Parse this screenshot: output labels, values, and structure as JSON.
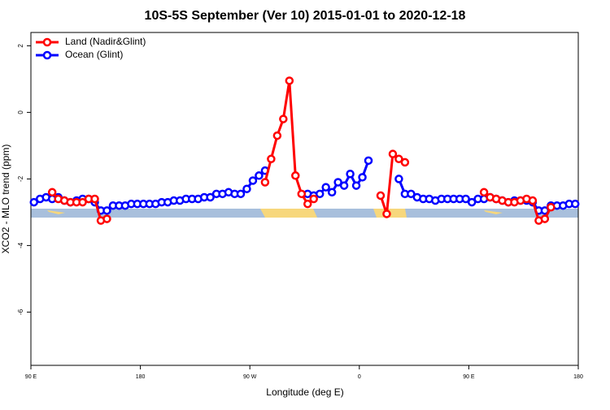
{
  "chart_data": {
    "type": "line",
    "title": "10S-5S September (Ver 10)   2015-01-01 to 2020-12-18",
    "x_label": "Longitude (deg E)",
    "y_label": "XCO2 - MLO trend (ppm)",
    "x": [
      92.5,
      97.5,
      102.5,
      107.5,
      112.5,
      117.5,
      122.5,
      127.5,
      132.5,
      137.5,
      142.5,
      147.5,
      152.5,
      157.5,
      162.5,
      167.5,
      172.5,
      177.5,
      182.5,
      187.5,
      192.5,
      197.5,
      202.5,
      207.5,
      212.5,
      217.5,
      222.5,
      227.5,
      232.5,
      237.5,
      242.5,
      247.5,
      252.5,
      257.5,
      262.5,
      267.5,
      272.5,
      277.5,
      282.5,
      287.5,
      292.5,
      297.5,
      302.5,
      307.5,
      312.5,
      317.5,
      322.5,
      327.5,
      332.5,
      337.5,
      342.5,
      347.5,
      352.5,
      357.5,
      362.5,
      367.5,
      372.5,
      377.5,
      382.5,
      387.5,
      392.5,
      397.5,
      402.5,
      407.5,
      412.5,
      417.5,
      422.5,
      427.5,
      432.5,
      437.5,
      442.5,
      447.5,
      452.5,
      457.5,
      462.5,
      467.5,
      472.5,
      477.5,
      482.5,
      487.5,
      492.5,
      497.5,
      502.5,
      507.5,
      512.5,
      517.5,
      522.5,
      527.5,
      532.5,
      537.5
    ],
    "series": [
      {
        "name": "Land (Nadir&Glint)",
        "color": "#ff0000",
        "values": [
          null,
          null,
          null,
          -2.4,
          -2.6,
          -2.65,
          -2.7,
          -2.7,
          -2.7,
          -2.6,
          -2.6,
          -3.25,
          -3.2,
          null,
          null,
          null,
          null,
          null,
          null,
          null,
          null,
          null,
          null,
          null,
          null,
          null,
          null,
          null,
          null,
          null,
          null,
          null,
          null,
          null,
          null,
          null,
          null,
          null,
          -2.1,
          -1.4,
          -0.7,
          -0.2,
          0.95,
          -1.9,
          -2.45,
          -2.75,
          -2.6,
          null,
          null,
          null,
          null,
          null,
          null,
          null,
          null,
          null,
          null,
          -2.5,
          -3.05,
          -1.25,
          -1.4,
          -1.5,
          null,
          null,
          null,
          null,
          null,
          null,
          null,
          null,
          null,
          null,
          null,
          null,
          -2.4,
          -2.55,
          -2.6,
          -2.65,
          -2.7,
          -2.7,
          -2.65,
          -2.6,
          -2.65,
          -3.25,
          -3.2,
          -2.85,
          null,
          null,
          null,
          null
        ]
      },
      {
        "name": "Ocean (Glint)",
        "color": "#0000ff",
        "values": [
          -2.7,
          -2.6,
          -2.55,
          -2.6,
          -2.55,
          -2.65,
          -2.7,
          -2.65,
          -2.6,
          -2.6,
          -2.7,
          -2.95,
          -2.95,
          -2.8,
          -2.8,
          -2.8,
          -2.75,
          -2.75,
          -2.75,
          -2.75,
          -2.75,
          -2.7,
          -2.7,
          -2.65,
          -2.65,
          -2.6,
          -2.6,
          -2.6,
          -2.55,
          -2.55,
          -2.45,
          -2.45,
          -2.4,
          -2.45,
          -2.45,
          -2.3,
          -2.05,
          -1.9,
          -1.75,
          null,
          null,
          null,
          null,
          null,
          null,
          -2.45,
          -2.5,
          -2.45,
          -2.25,
          -2.4,
          -2.1,
          -2.2,
          -1.85,
          -2.2,
          -1.95,
          -1.45,
          null,
          null,
          null,
          null,
          -2.0,
          -2.45,
          -2.45,
          -2.55,
          -2.6,
          -2.6,
          -2.65,
          -2.6,
          -2.6,
          -2.6,
          -2.6,
          -2.6,
          -2.7,
          -2.6,
          -2.6,
          -2.55,
          -2.6,
          -2.65,
          -2.7,
          -2.65,
          -2.65,
          -2.65,
          -2.7,
          -2.95,
          -2.95,
          -2.8,
          -2.8,
          -2.8,
          -2.75,
          -2.75
        ]
      }
    ],
    "xlim": [
      90,
      540
    ],
    "xticks": [
      {
        "value": 90,
        "label": "90 E"
      },
      180,
      {
        "value": 270,
        "label": "90 W"
      },
      {
        "value": 360,
        "label": "0"
      },
      {
        "value": 450,
        "label": "90 E"
      },
      {
        "value": 540,
        "label": "180"
      }
    ],
    "ylim": [
      -7.6,
      2.4
    ],
    "yticks": [
      -6,
      -4,
      -2,
      0,
      2
    ],
    "legend": "top-left"
  }
}
